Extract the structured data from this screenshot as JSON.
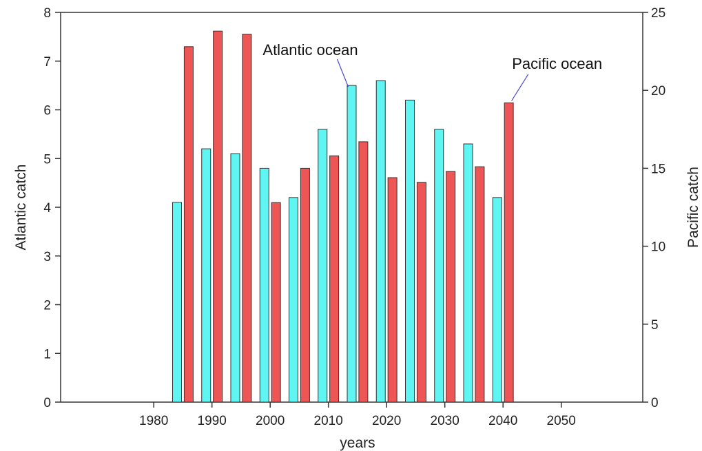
{
  "chart_data": {
    "type": "bar",
    "title": "",
    "xlabel": "years",
    "ylabel_left": "Atlantic catch",
    "ylabel_right": "Pacific catch",
    "xlim": [
      1964,
      2064
    ],
    "ylim_left": [
      0,
      8
    ],
    "ylim_right": [
      0,
      25
    ],
    "x_ticks": [
      1980,
      1990,
      2000,
      2010,
      2020,
      2030,
      2040,
      2050
    ],
    "y_ticks_left": [
      0,
      1,
      2,
      3,
      4,
      5,
      6,
      7,
      8
    ],
    "y_ticks_right": [
      0,
      5,
      10,
      15,
      20,
      25
    ],
    "grid": false,
    "series": [
      {
        "name": "Atlantic ocean",
        "axis": "left",
        "color": "#5ff5f2",
        "x": [
          1984,
          1989,
          1994,
          1999,
          2004,
          2009,
          2014,
          2019,
          2024,
          2029,
          2034,
          2039
        ],
        "values": [
          4.1,
          5.2,
          5.1,
          4.8,
          4.2,
          5.6,
          6.5,
          6.6,
          6.2,
          5.6,
          5.3,
          4.2
        ]
      },
      {
        "name": "Pacific ocean",
        "axis": "right",
        "color": "#ee5555",
        "x": [
          1986,
          1991,
          1996,
          2001,
          2006,
          2011,
          2016,
          2021,
          2026,
          2031,
          2036,
          2041
        ],
        "values": [
          22.8,
          23.8,
          23.6,
          12.8,
          15.0,
          15.8,
          16.7,
          14.4,
          14.1,
          14.8,
          15.1,
          19.2
        ]
      }
    ],
    "annotations": [
      {
        "text": "Atlantic ocean",
        "series": "Atlantic ocean",
        "index": 6
      },
      {
        "text": "Pacific ocean",
        "series": "Pacific ocean",
        "index": 11
      }
    ]
  }
}
